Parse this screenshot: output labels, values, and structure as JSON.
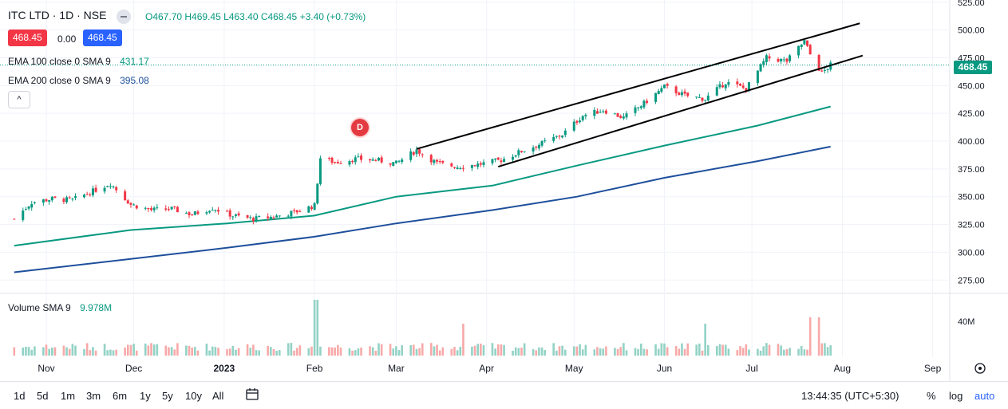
{
  "header": {
    "symbol": "ITC LTD · 1D · NSE",
    "open": "O467.70",
    "high": "H469.45",
    "low": "L463.40",
    "close": "C468.45",
    "change": "+3.40 (+0.73%)",
    "sell_price": "468.45",
    "spread": "0.00",
    "buy_price": "468.45"
  },
  "indicators": [
    {
      "label": "EMA 100 close 0 SMA 9",
      "value": "431.17",
      "color": "#089981"
    },
    {
      "label": "EMA 200 close 0 SMA 9",
      "value": "395.08",
      "color": "#1e4f9c"
    }
  ],
  "volume_legend": {
    "label": "Volume SMA 9",
    "value": "9.978M",
    "color": "#089981"
  },
  "collapse_label": "^",
  "event_marker": "D",
  "current_price_label": "468.45",
  "bottom_bar": {
    "ranges": [
      "1d",
      "5d",
      "1m",
      "3m",
      "6m",
      "1y",
      "5y",
      "10y",
      "All"
    ],
    "time": "13:44:35 (UTC+5:30)",
    "percent": "%",
    "log": "log",
    "auto": "auto"
  },
  "colors": {
    "up": "#089981",
    "down": "#f23645",
    "ema100": "#089981",
    "ema200": "#1e4f9c",
    "badge_sell": "#f23645",
    "badge_buy": "#2962ff"
  },
  "chart_data": {
    "type": "candlestick",
    "x_tick_labels": [
      "Nov",
      "Dec",
      "2023",
      "Feb",
      "Mar",
      "Apr",
      "May",
      "Jun",
      "Jul",
      "Aug",
      "Sep"
    ],
    "y_tick_labels": [
      "525.00",
      "500.00",
      "475.00",
      "450.00",
      "425.00",
      "400.00",
      "375.00",
      "350.00",
      "325.00",
      "300.00",
      "275.00"
    ],
    "ylim": [
      263,
      527
    ],
    "volume_axis_label": "40M",
    "price_path": [
      [
        "2022-10-21",
        330
      ],
      [
        "2022-10-27",
        345
      ],
      [
        "2022-11-03",
        348
      ],
      [
        "2022-11-10",
        347
      ],
      [
        "2022-11-17",
        355
      ],
      [
        "2022-11-23",
        362
      ],
      [
        "2022-11-30",
        343
      ],
      [
        "2022-12-07",
        338
      ],
      [
        "2022-12-14",
        339
      ],
      [
        "2022-12-21",
        334
      ],
      [
        "2022-12-28",
        340
      ],
      [
        "2023-01-04",
        333
      ],
      [
        "2023-01-11",
        330
      ],
      [
        "2023-01-18",
        332
      ],
      [
        "2023-01-25",
        336
      ],
      [
        "2023-02-01",
        342
      ],
      [
        "2023-02-03",
        385
      ],
      [
        "2023-02-08",
        381
      ],
      [
        "2023-02-15",
        384
      ],
      [
        "2023-02-22",
        383
      ],
      [
        "2023-03-01",
        380
      ],
      [
        "2023-03-08",
        392
      ],
      [
        "2023-03-15",
        380
      ],
      [
        "2023-03-22",
        377
      ],
      [
        "2023-03-29",
        379
      ],
      [
        "2023-04-06",
        383
      ],
      [
        "2023-04-13",
        391
      ],
      [
        "2023-04-20",
        398
      ],
      [
        "2023-04-27",
        406
      ],
      [
        "2023-05-04",
        423
      ],
      [
        "2023-05-11",
        428
      ],
      [
        "2023-05-18",
        421
      ],
      [
        "2023-05-25",
        434
      ],
      [
        "2023-06-01",
        449
      ],
      [
        "2023-06-08",
        441
      ],
      [
        "2023-06-15",
        438
      ],
      [
        "2023-06-22",
        453
      ],
      [
        "2023-06-29",
        447
      ],
      [
        "2023-07-06",
        475
      ],
      [
        "2023-07-13",
        472
      ],
      [
        "2023-07-19",
        490
      ],
      [
        "2023-07-21",
        478
      ],
      [
        "2023-07-25",
        461
      ],
      [
        "2023-07-28",
        468.45
      ]
    ],
    "ema100_path": [
      [
        "2022-10-21",
        306
      ],
      [
        "2022-11-30",
        320
      ],
      [
        "2023-01-02",
        326
      ],
      [
        "2023-02-01",
        333
      ],
      [
        "2023-03-01",
        350
      ],
      [
        "2023-04-03",
        360
      ],
      [
        "2023-05-02",
        378
      ],
      [
        "2023-06-01",
        396
      ],
      [
        "2023-07-03",
        414
      ],
      [
        "2023-07-28",
        431.17
      ]
    ],
    "ema200_path": [
      [
        "2022-10-21",
        282
      ],
      [
        "2022-11-30",
        294
      ],
      [
        "2023-01-02",
        304
      ],
      [
        "2023-02-01",
        314
      ],
      [
        "2023-03-01",
        326
      ],
      [
        "2023-04-03",
        338
      ],
      [
        "2023-05-02",
        350
      ],
      [
        "2023-06-01",
        367
      ],
      [
        "2023-07-03",
        382
      ],
      [
        "2023-07-28",
        395.08
      ]
    ],
    "channel_upper": [
      [
        "2023-03-08",
        393
      ],
      [
        "2023-08-07",
        506
      ]
    ],
    "channel_lower": [
      [
        "2023-04-05",
        377
      ],
      [
        "2023-08-08",
        477
      ]
    ]
  }
}
